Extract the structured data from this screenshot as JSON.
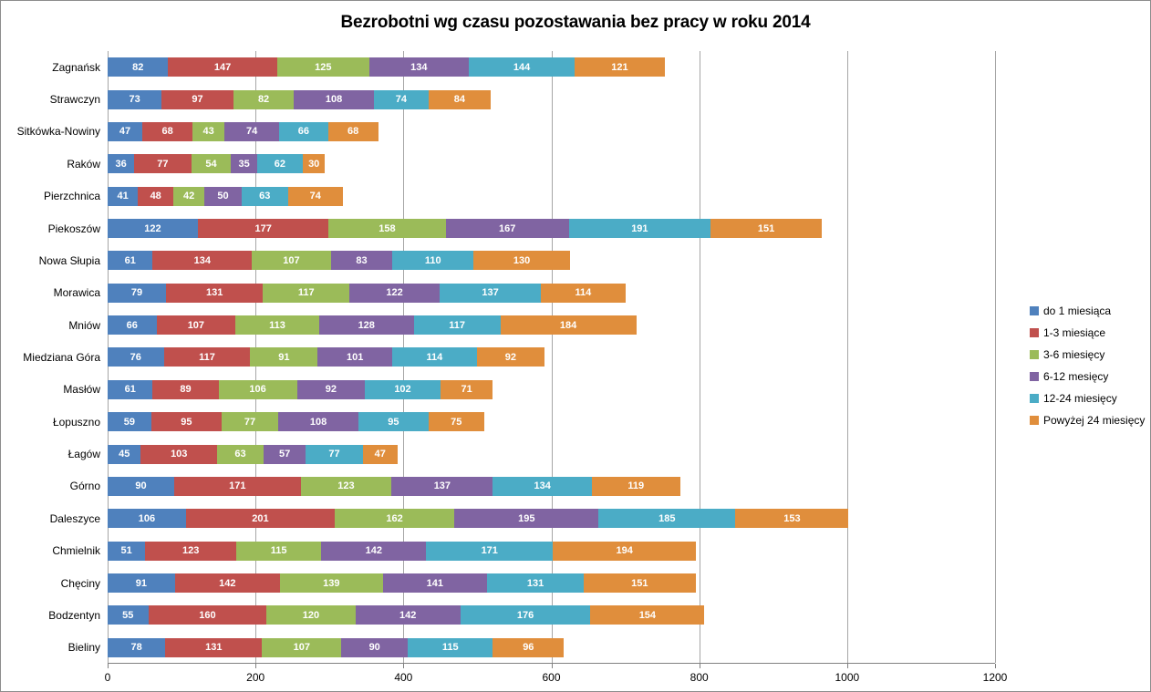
{
  "chart_data": {
    "type": "bar",
    "orientation": "horizontal",
    "stacked": true,
    "title": "Bezrobotni wg czasu pozostawania bez pracy w roku 2014",
    "categories": [
      "Zagnańsk",
      "Strawczyn",
      "Sitkówka-Nowiny",
      "Raków",
      "Pierzchnica",
      "Piekoszów",
      "Nowa Słupia",
      "Morawica",
      "Mniów",
      "Miedziana Góra",
      "Masłów",
      "Łopuszno",
      "Łagów",
      "Górno",
      "Daleszyce",
      "Chmielnik",
      "Chęciny",
      "Bodzentyn",
      "Bieliny"
    ],
    "series": [
      {
        "name": "do 1 miesiąca",
        "color": "#4F81BD",
        "values": [
          82,
          73,
          47,
          36,
          41,
          122,
          61,
          79,
          66,
          76,
          61,
          59,
          45,
          90,
          106,
          51,
          91,
          55,
          78
        ]
      },
      {
        "name": "1-3 miesiące",
        "color": "#C0504D",
        "values": [
          147,
          97,
          68,
          77,
          48,
          177,
          134,
          131,
          107,
          117,
          89,
          95,
          103,
          171,
          201,
          123,
          142,
          160,
          131
        ]
      },
      {
        "name": "3-6 miesięcy",
        "color": "#9BBB59",
        "values": [
          125,
          82,
          43,
          54,
          42,
          158,
          107,
          117,
          113,
          91,
          106,
          77,
          63,
          123,
          162,
          115,
          139,
          120,
          107
        ]
      },
      {
        "name": "6-12 mesięcy",
        "color": "#8064A2",
        "values": [
          134,
          108,
          74,
          35,
          50,
          167,
          83,
          122,
          128,
          101,
          92,
          108,
          57,
          137,
          195,
          142,
          141,
          142,
          90
        ]
      },
      {
        "name": "12-24 miesięcy",
        "color": "#4BACC6",
        "values": [
          144,
          74,
          66,
          62,
          63,
          191,
          110,
          137,
          117,
          114,
          102,
          95,
          77,
          134,
          185,
          171,
          131,
          176,
          115
        ]
      },
      {
        "name": "Powyżej 24 miesięcy",
        "color": "#E08E3C",
        "values": [
          121,
          84,
          68,
          30,
          74,
          151,
          130,
          114,
          184,
          92,
          71,
          75,
          47,
          119,
          153,
          194,
          151,
          154,
          96
        ]
      }
    ],
    "xlim": [
      0,
      1200
    ],
    "xticks": [
      0,
      200,
      400,
      600,
      800,
      1000,
      1200
    ],
    "grid": "vertical",
    "legend_position": "right",
    "value_labels": "inside-white-bold",
    "colors": {
      "gridline": "#A6A6A6",
      "axis_line": "#808080",
      "background": "#FFFFFF",
      "text": "#000000"
    }
  }
}
